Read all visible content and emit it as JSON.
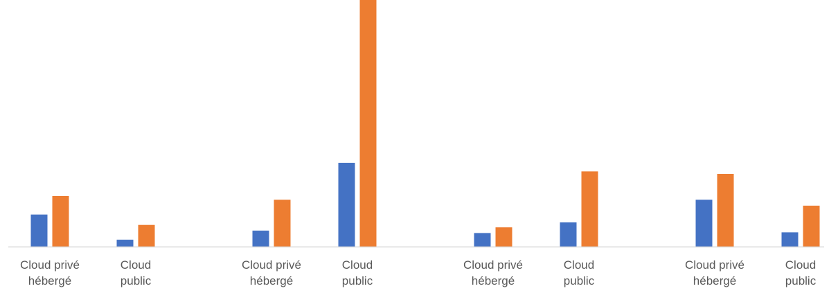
{
  "chart_data": {
    "type": "bar",
    "title": "",
    "xlabel": "",
    "ylabel": "",
    "ylim": [
      0,
      100
    ],
    "grid": false,
    "legend": "none",
    "groups": [
      {
        "categories": [
          {
            "label_lines": [
              "Cloud privé",
              "hébergé"
            ],
            "values": [
              13,
              20.5
            ]
          },
          {
            "label_lines": [
              "Cloud",
              "public"
            ],
            "values": [
              2.8,
              8.8
            ]
          }
        ]
      },
      {
        "categories": [
          {
            "label_lines": [
              "Cloud privé",
              "hébergé"
            ],
            "values": [
              6.5,
              19
            ]
          },
          {
            "label_lines": [
              "Cloud",
              "public"
            ],
            "values": [
              34,
              100
            ]
          }
        ]
      },
      {
        "categories": [
          {
            "label_lines": [
              "Cloud privé",
              "hébergé"
            ],
            "values": [
              5.5,
              7.8
            ]
          },
          {
            "label_lines": [
              "Cloud",
              "public"
            ],
            "values": [
              9.8,
              30.5
            ]
          }
        ]
      },
      {
        "categories": [
          {
            "label_lines": [
              "Cloud privé",
              "hébergé"
            ],
            "values": [
              19,
              29.5
            ]
          },
          {
            "label_lines": [
              "Cloud",
              "public"
            ],
            "values": [
              5.8,
              16.6
            ]
          }
        ]
      }
    ],
    "series": [
      {
        "color": "#4472C4"
      },
      {
        "color": "#ED7D31"
      }
    ],
    "colors": {
      "axis": "#D9D9D9",
      "tick_label": "#595959"
    }
  }
}
